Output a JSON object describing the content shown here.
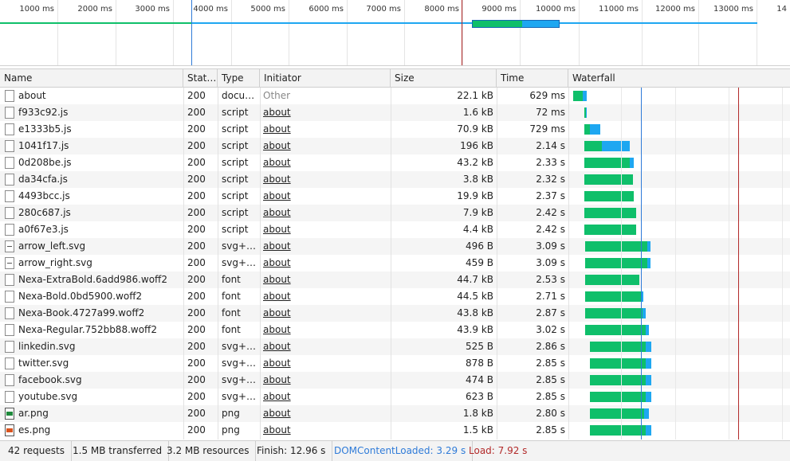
{
  "overview": {
    "ticks": [
      "1000 ms",
      "2000 ms",
      "3000 ms",
      "4000 ms",
      "5000 ms",
      "6000 ms",
      "7000 ms",
      "8000 ms",
      "9000 ms",
      "10000 ms",
      "11000 ms",
      "12000 ms",
      "13000 ms",
      "14"
    ]
  },
  "table": {
    "headers": {
      "name": "Name",
      "status": "Stat…",
      "type": "Type",
      "initiator": "Initiator",
      "size": "Size",
      "time": "Time",
      "waterfall": "Waterfall"
    },
    "rows": [
      {
        "name": "about",
        "status": "200",
        "type": "docu…",
        "initiator": "Other",
        "size": "22.1 kB",
        "time": "629 ms",
        "icon": "doc-icon"
      },
      {
        "name": "f933c92.js",
        "status": "200",
        "type": "script",
        "initiator": "about",
        "size": "1.6 kB",
        "time": "72 ms",
        "icon": "doc-icon"
      },
      {
        "name": "e1333b5.js",
        "status": "200",
        "type": "script",
        "initiator": "about",
        "size": "70.9 kB",
        "time": "729 ms",
        "icon": "doc-icon"
      },
      {
        "name": "1041f17.js",
        "status": "200",
        "type": "script",
        "initiator": "about",
        "size": "196 kB",
        "time": "2.14 s",
        "icon": "doc-icon"
      },
      {
        "name": "0d208be.js",
        "status": "200",
        "type": "script",
        "initiator": "about",
        "size": "43.2 kB",
        "time": "2.33 s",
        "icon": "doc-icon"
      },
      {
        "name": "da34cfa.js",
        "status": "200",
        "type": "script",
        "initiator": "about",
        "size": "3.8 kB",
        "time": "2.32 s",
        "icon": "doc-icon"
      },
      {
        "name": "4493bcc.js",
        "status": "200",
        "type": "script",
        "initiator": "about",
        "size": "19.9 kB",
        "time": "2.37 s",
        "icon": "doc-icon"
      },
      {
        "name": "280c687.js",
        "status": "200",
        "type": "script",
        "initiator": "about",
        "size": "7.9 kB",
        "time": "2.42 s",
        "icon": "doc-icon"
      },
      {
        "name": "a0f67e3.js",
        "status": "200",
        "type": "script",
        "initiator": "about",
        "size": "4.4 kB",
        "time": "2.42 s",
        "icon": "doc-icon"
      },
      {
        "name": "arrow_left.svg",
        "status": "200",
        "type": "svg+…",
        "initiator": "about",
        "size": "496 B",
        "time": "3.09 s",
        "icon": "svg-icon"
      },
      {
        "name": "arrow_right.svg",
        "status": "200",
        "type": "svg+…",
        "initiator": "about",
        "size": "459 B",
        "time": "3.09 s",
        "icon": "svg-icon"
      },
      {
        "name": "Nexa-ExtraBold.6add986.woff2",
        "status": "200",
        "type": "font",
        "initiator": "about",
        "size": "44.7 kB",
        "time": "2.53 s",
        "icon": "font-icon"
      },
      {
        "name": "Nexa-Bold.0bd5900.woff2",
        "status": "200",
        "type": "font",
        "initiator": "about",
        "size": "44.5 kB",
        "time": "2.71 s",
        "icon": "font-icon"
      },
      {
        "name": "Nexa-Book.4727a99.woff2",
        "status": "200",
        "type": "font",
        "initiator": "about",
        "size": "43.8 kB",
        "time": "2.87 s",
        "icon": "font-icon"
      },
      {
        "name": "Nexa-Regular.752bb88.woff2",
        "status": "200",
        "type": "font",
        "initiator": "about",
        "size": "43.9 kB",
        "time": "3.02 s",
        "icon": "font-icon"
      },
      {
        "name": "linkedin.svg",
        "status": "200",
        "type": "svg+…",
        "initiator": "about",
        "size": "525 B",
        "time": "2.86 s",
        "icon": "svg-file-icon"
      },
      {
        "name": "twitter.svg",
        "status": "200",
        "type": "svg+…",
        "initiator": "about",
        "size": "878 B",
        "time": "2.85 s",
        "icon": "svg-file-icon"
      },
      {
        "name": "facebook.svg",
        "status": "200",
        "type": "svg+…",
        "initiator": "about",
        "size": "474 B",
        "time": "2.85 s",
        "icon": "svg-file-icon"
      },
      {
        "name": "youtube.svg",
        "status": "200",
        "type": "svg+…",
        "initiator": "about",
        "size": "623 B",
        "time": "2.85 s",
        "icon": "svg-file-icon"
      },
      {
        "name": "ar.png",
        "status": "200",
        "type": "png",
        "initiator": "about",
        "size": "1.8 kB",
        "time": "2.80 s",
        "icon": "png-icon",
        "icon_color": "#1f8a3c"
      },
      {
        "name": "es.png",
        "status": "200",
        "type": "png",
        "initiator": "about",
        "size": "1.5 kB",
        "time": "2.85 s",
        "icon": "png-icon",
        "icon_color": "#d9531e"
      }
    ]
  },
  "colors": {
    "waiting": "#0fbf6a",
    "download": "#1ea7f1",
    "dom_line": "#2f7bd8",
    "load_line": "#b22a2a"
  },
  "statusbar": {
    "requests": "42 requests",
    "transferred": "1.5 MB transferred",
    "resources": "3.2 MB resources",
    "finish": "Finish: 12.96 s",
    "dom": "DOMContentLoaded: 3.29 s",
    "load": "Load: 7.92 s"
  }
}
